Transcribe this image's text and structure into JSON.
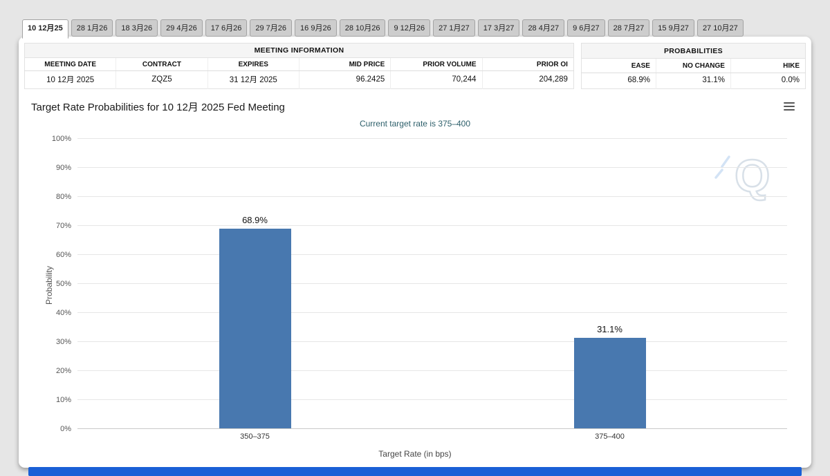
{
  "tabs": [
    {
      "label": "10 12月25",
      "active": true
    },
    {
      "label": "28 1月26",
      "active": false
    },
    {
      "label": "18 3月26",
      "active": false
    },
    {
      "label": "29 4月26",
      "active": false
    },
    {
      "label": "17 6月26",
      "active": false
    },
    {
      "label": "29 7月26",
      "active": false
    },
    {
      "label": "16 9月26",
      "active": false
    },
    {
      "label": "28 10月26",
      "active": false
    },
    {
      "label": "9 12月26",
      "active": false
    },
    {
      "label": "27 1月27",
      "active": false
    },
    {
      "label": "17 3月27",
      "active": false
    },
    {
      "label": "28 4月27",
      "active": false
    },
    {
      "label": "9 6月27",
      "active": false
    },
    {
      "label": "28 7月27",
      "active": false
    },
    {
      "label": "15 9月27",
      "active": false
    },
    {
      "label": "27 10月27",
      "active": false
    }
  ],
  "meeting_info": {
    "title": "MEETING INFORMATION",
    "headers": [
      "MEETING DATE",
      "CONTRACT",
      "EXPIRES",
      "MID PRICE",
      "PRIOR VOLUME",
      "PRIOR OI"
    ],
    "values": [
      "10 12月 2025",
      "ZQZ5",
      "31 12月 2025",
      "96.2425",
      "70,244",
      "204,289"
    ]
  },
  "probabilities": {
    "title": "PROBABILITIES",
    "headers": [
      "EASE",
      "NO CHANGE",
      "HIKE"
    ],
    "values": [
      "68.9%",
      "31.1%",
      "0.0%"
    ]
  },
  "chart_data": {
    "type": "bar",
    "title": "Target Rate Probabilities for 10 12月 2025 Fed Meeting",
    "subtitle": "Current target rate is 375–400",
    "categories": [
      "350–375",
      "375–400"
    ],
    "values": [
      68.9,
      31.1
    ],
    "value_labels": [
      "68.9%",
      "31.1%"
    ],
    "xlabel": "Target Rate (in bps)",
    "ylabel": "Probability",
    "ylim": [
      0,
      100
    ],
    "ytick_step": 10,
    "ytick_suffix": "%",
    "grid": true,
    "legend": "none",
    "bar_color": "#4878af"
  },
  "icons": {
    "menu": "hamburger-menu-icon",
    "watermark_letter": "Q"
  },
  "colors": {
    "footer_accent": "#1a5fd6",
    "subtitle_text": "#2d5f6a"
  }
}
